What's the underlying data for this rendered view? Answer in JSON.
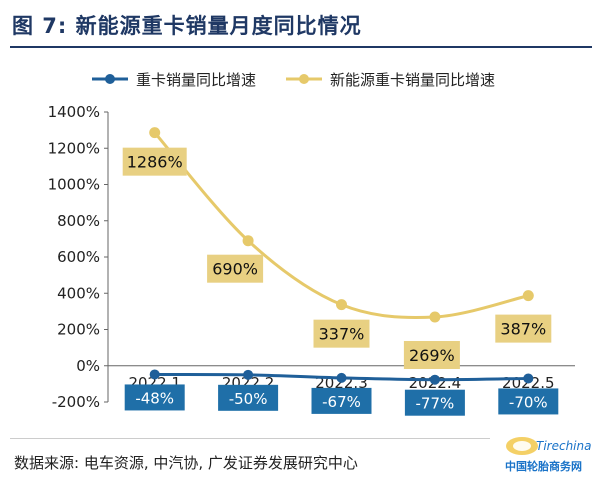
{
  "figure": {
    "title": "图 7: 新能源重卡销量月度同比情况",
    "source": "数据来源: 电车资源, 中汽协, 广发证券发展研究中心",
    "watermark_text": "中国轮胎商务网",
    "watermark_logo": "Tirechina.net"
  },
  "colors": {
    "title": "#1f3864",
    "series_heavy_truck": "#1f5f99",
    "series_nev": "#e6c96a",
    "label_box_nev": "#e8d082",
    "label_box_heavy": "#1f6fa8"
  },
  "chart_data": {
    "type": "line",
    "categories": [
      "2022.1",
      "2022.2",
      "2022.3",
      "2022.4",
      "2022.5"
    ],
    "ylim": [
      -200,
      1400
    ],
    "yticks": [
      "-200%",
      "0%",
      "200%",
      "400%",
      "600%",
      "800%",
      "1000%",
      "1200%",
      "1400%"
    ],
    "grid": false,
    "legend": "top",
    "series": [
      {
        "name": "重卡销量同比增速",
        "values": [
          -48,
          -50,
          -67,
          -77,
          -70
        ],
        "labels": [
          "-48%",
          "-50%",
          "-67%",
          "-77%",
          "-70%"
        ]
      },
      {
        "name": "新能源重卡销量同比增速",
        "values": [
          1286,
          690,
          337,
          269,
          387
        ],
        "labels": [
          "1286%",
          "690%",
          "337%",
          "269%",
          "387%"
        ]
      }
    ]
  }
}
